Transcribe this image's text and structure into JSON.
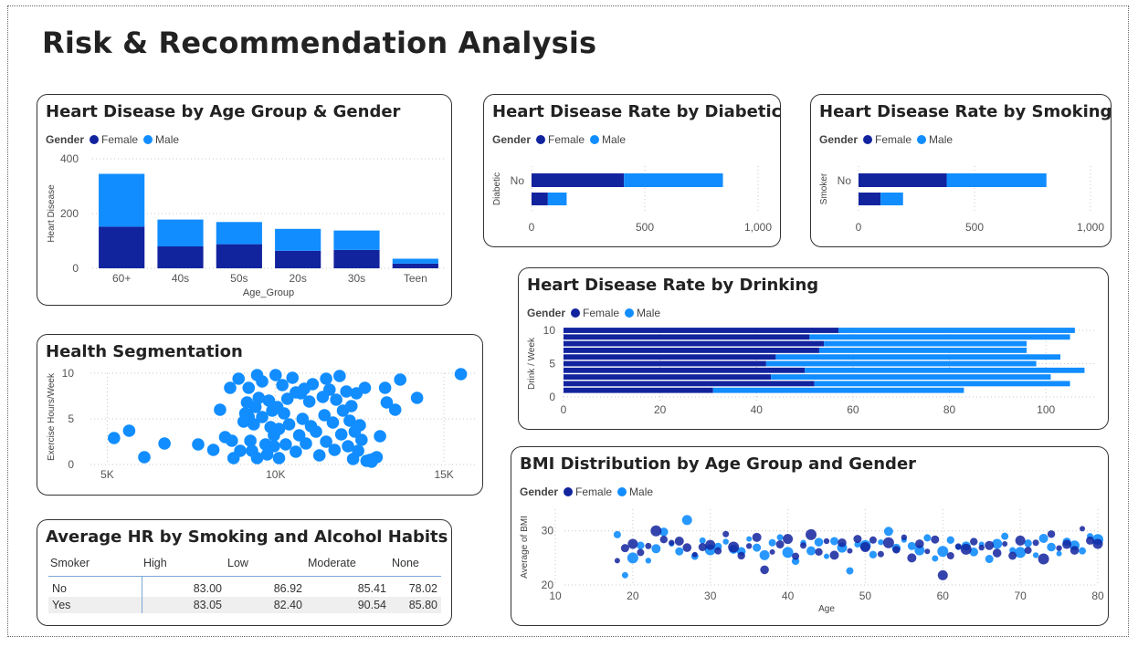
{
  "page": {
    "title": "Risk & Recommendation Analysis"
  },
  "colors": {
    "female": "#12239e",
    "male": "#118dff"
  },
  "legend": {
    "title": "Gender",
    "female": "Female",
    "male": "Male"
  },
  "age_gender": {
    "title": "Heart Disease by Age Group & Gender",
    "chart_data": {
      "type": "bar",
      "stacked": true,
      "categories": [
        "60+",
        "40s",
        "50s",
        "20s",
        "30s",
        "Teen"
      ],
      "series": [
        {
          "name": "Female",
          "values": [
            152,
            80,
            88,
            64,
            67,
            17
          ]
        },
        {
          "name": "Male",
          "values": [
            193,
            98,
            81,
            80,
            71,
            18
          ]
        }
      ],
      "xlabel": "Age_Group",
      "ylabel": "Heart Disease",
      "ylim": [
        0,
        400
      ],
      "yticks": [
        0,
        200,
        400
      ],
      "ytick_labels": [
        "0",
        "200",
        "400"
      ],
      "legend": "top-left",
      "grid": true
    }
  },
  "diabetic": {
    "title": "Heart Disease Rate by Diabetic",
    "chart_data": {
      "type": "bar",
      "orientation": "horizontal",
      "stacked": true,
      "categories": [
        "No",
        ""
      ],
      "series": [
        {
          "name": "Female",
          "values": [
            408,
            72
          ]
        },
        {
          "name": "Male",
          "values": [
            437,
            83
          ]
        }
      ],
      "ylabel": "Diabetic",
      "xlim": [
        0,
        1000
      ],
      "xticks": [
        0,
        500,
        1000
      ],
      "xtick_labels": [
        "0",
        "500",
        "1,000"
      ],
      "legend": "top-left",
      "grid": true
    }
  },
  "smoking": {
    "title": "Heart Disease Rate by Smoking",
    "chart_data": {
      "type": "bar",
      "orientation": "horizontal",
      "stacked": true,
      "categories": [
        "No",
        ""
      ],
      "series": [
        {
          "name": "Female",
          "values": [
            380,
            95
          ]
        },
        {
          "name": "Male",
          "values": [
            430,
            97
          ]
        }
      ],
      "ylabel": "Smoker",
      "xlim": [
        0,
        1000
      ],
      "xticks": [
        0,
        500,
        1000
      ],
      "xtick_labels": [
        "0",
        "500",
        "1,000"
      ],
      "legend": "top-left",
      "grid": true
    }
  },
  "drinking": {
    "title": "Heart Disease Rate by Drinking",
    "chart_data": {
      "type": "bar",
      "orientation": "horizontal",
      "stacked": true,
      "categories": [
        10,
        9,
        8,
        7,
        6,
        5,
        4,
        3,
        2,
        1,
        0
      ],
      "series": [
        {
          "name": "Female",
          "values": [
            57,
            51,
            54,
            53,
            44,
            42,
            50,
            43,
            52,
            31,
            0
          ]
        },
        {
          "name": "Male",
          "values": [
            49,
            54,
            42,
            43,
            59,
            56,
            58,
            58,
            53,
            52,
            0
          ]
        }
      ],
      "ylabel": "Drink / Week",
      "xlim": [
        0,
        110
      ],
      "xticks": [
        0,
        20,
        40,
        60,
        80,
        100
      ],
      "yticks": [
        0,
        5,
        10
      ],
      "legend": "top-left",
      "grid": true
    }
  },
  "segmentation": {
    "title": "Health Segmentation",
    "chart_data": {
      "type": "scatter",
      "ylabel": "Exercise Hours/Week",
      "xlim": [
        4500,
        16000
      ],
      "ylim": [
        0,
        10
      ],
      "xticks": [
        5000,
        10000,
        15000
      ],
      "xtick_labels": [
        "5K",
        "10K",
        "15K"
      ],
      "yticks": [
        0,
        5,
        10
      ],
      "grid": true,
      "points": [
        [
          5200,
          2.9
        ],
        [
          5650,
          3.7
        ],
        [
          6100,
          0.8
        ],
        [
          6700,
          2.3
        ],
        [
          7700,
          2.2
        ],
        [
          8150,
          1.6
        ],
        [
          8350,
          6.0
        ],
        [
          8500,
          3.0
        ],
        [
          8650,
          8.4
        ],
        [
          8700,
          2.6
        ],
        [
          8750,
          0.7
        ],
        [
          8900,
          9.4
        ],
        [
          8950,
          1.5
        ],
        [
          9050,
          4.7
        ],
        [
          9100,
          5.6
        ],
        [
          9150,
          6.8
        ],
        [
          9200,
          5.2
        ],
        [
          9200,
          8.4
        ],
        [
          9250,
          2.6
        ],
        [
          9300,
          1.5
        ],
        [
          9350,
          4.4
        ],
        [
          9400,
          6.3
        ],
        [
          9450,
          9.8
        ],
        [
          9450,
          0.7
        ],
        [
          9500,
          7.3
        ],
        [
          9600,
          5.2
        ],
        [
          9600,
          9.1
        ],
        [
          9700,
          2.2
        ],
        [
          9750,
          1.1
        ],
        [
          9800,
          7.0
        ],
        [
          9850,
          4.1
        ],
        [
          9900,
          5.9
        ],
        [
          9950,
          3.2
        ],
        [
          10000,
          9.8
        ],
        [
          10050,
          6.3
        ],
        [
          10100,
          3.9
        ],
        [
          10100,
          0.7
        ],
        [
          10200,
          8.7
        ],
        [
          10250,
          5.6
        ],
        [
          10300,
          2.2
        ],
        [
          10350,
          7.2
        ],
        [
          10400,
          4.4
        ],
        [
          10500,
          9.5
        ],
        [
          10600,
          1.4
        ],
        [
          10700,
          3.2
        ],
        [
          10750,
          7.8
        ],
        [
          10800,
          5.0
        ],
        [
          10850,
          8.3
        ],
        [
          10900,
          2.3
        ],
        [
          11000,
          6.9
        ],
        [
          11050,
          4.2
        ],
        [
          11100,
          8.8
        ],
        [
          11200,
          3.6
        ],
        [
          11300,
          1.0
        ],
        [
          11400,
          7.4
        ],
        [
          11450,
          5.4
        ],
        [
          11500,
          2.5
        ],
        [
          11600,
          8.2
        ],
        [
          11700,
          4.6
        ],
        [
          11750,
          1.6
        ],
        [
          11800,
          7.1
        ],
        [
          11900,
          9.7
        ],
        [
          11950,
          3.3
        ],
        [
          12000,
          5.9
        ],
        [
          12100,
          8.0
        ],
        [
          12150,
          2.0
        ],
        [
          12200,
          4.8
        ],
        [
          12250,
          6.4
        ],
        [
          12300,
          0.6
        ],
        [
          12350,
          3.6
        ],
        [
          12400,
          7.8
        ],
        [
          12450,
          1.5
        ],
        [
          12500,
          4.3
        ],
        [
          12550,
          2.7
        ],
        [
          12650,
          8.4
        ],
        [
          12700,
          0.4
        ],
        [
          12800,
          0.5
        ],
        [
          12900,
          0.6
        ],
        [
          13000,
          0.8
        ],
        [
          13100,
          3.1
        ],
        [
          13250,
          8.4
        ],
        [
          13300,
          6.8
        ],
        [
          13550,
          6.0
        ],
        [
          13700,
          9.3
        ],
        [
          14200,
          7.3
        ],
        [
          15500,
          9.9
        ],
        [
          11500,
          9.4
        ],
        [
          10600,
          7.9
        ],
        [
          9950,
          2.0
        ],
        [
          12850,
          0.3
        ]
      ]
    }
  },
  "avg_hr": {
    "title": "Average HR by Smoking and Alcohol Habits",
    "headers": {
      "c0": "Smoker",
      "c1": "High",
      "c2": "Low",
      "c3": "Moderate",
      "c4": "None"
    },
    "rows": [
      {
        "smoker": "No",
        "high": "83.00",
        "low": "86.92",
        "moderate": "85.41",
        "none": "78.02"
      },
      {
        "smoker": "Yes",
        "high": "83.05",
        "low": "82.40",
        "moderate": "90.54",
        "none": "85.80"
      }
    ]
  },
  "bmi": {
    "title": "BMI Distribution by Age Group and Gender",
    "chart_data": {
      "type": "scatter",
      "xlabel": "Age",
      "ylabel": "Average of BMI",
      "xlim": [
        10,
        80
      ],
      "ylim": [
        20,
        34
      ],
      "xticks": [
        10,
        20,
        30,
        40,
        50,
        60,
        70,
        80
      ],
      "yticks": [
        20,
        30
      ],
      "legend": "top-left",
      "grid": true,
      "series": [
        {
          "name": "Female",
          "points": [
            [
              18,
              24.5
            ],
            [
              19,
              26.8
            ],
            [
              20,
              27.6
            ],
            [
              21,
              26.0
            ],
            [
              22,
              27.2
            ],
            [
              23,
              30.0
            ],
            [
              24,
              28.4
            ],
            [
              25,
              27.8
            ],
            [
              26,
              28.1
            ],
            [
              27,
              26.9
            ],
            [
              28,
              25.6
            ],
            [
              29,
              27.0
            ],
            [
              30,
              27.4
            ],
            [
              31,
              26.3
            ],
            [
              32,
              29.4
            ],
            [
              33,
              27.0
            ],
            [
              34,
              25.4
            ],
            [
              35,
              27.2
            ],
            [
              36,
              28.8
            ],
            [
              37,
              22.8
            ],
            [
              38,
              26.1
            ],
            [
              39,
              27.5
            ],
            [
              40,
              28.5
            ],
            [
              41,
              25.3
            ],
            [
              42,
              27.3
            ],
            [
              43,
              29.3
            ],
            [
              44,
              26.1
            ],
            [
              45,
              28.1
            ],
            [
              46,
              25.5
            ],
            [
              47,
              27.8
            ],
            [
              48,
              26.3
            ],
            [
              49,
              28.5
            ],
            [
              50,
              27.0
            ],
            [
              51,
              28.3
            ],
            [
              52,
              25.7
            ],
            [
              53,
              27.8
            ],
            [
              54,
              26.5
            ],
            [
              55,
              28.8
            ],
            [
              56,
              25.0
            ],
            [
              57,
              27.6
            ],
            [
              58,
              26.2
            ],
            [
              59,
              28.4
            ],
            [
              60,
              21.8
            ],
            [
              61,
              25.4
            ],
            [
              62,
              27.1
            ],
            [
              63,
              26.6
            ],
            [
              64,
              28.0
            ],
            [
              65,
              26.9
            ],
            [
              66,
              27.3
            ],
            [
              67,
              25.9
            ],
            [
              68,
              27.6
            ],
            [
              69,
              25.4
            ],
            [
              70,
              28.2
            ],
            [
              71,
              26.4
            ],
            [
              72,
              27.8
            ],
            [
              73,
              24.8
            ],
            [
              74,
              29.4
            ],
            [
              75,
              26.8
            ],
            [
              76,
              27.5
            ],
            [
              77,
              26.4
            ],
            [
              78,
              30.4
            ],
            [
              79,
              28.2
            ],
            [
              80,
              27.6
            ]
          ]
        },
        {
          "name": "Male",
          "points": [
            [
              18,
              29.3
            ],
            [
              19,
              21.8
            ],
            [
              20,
              25.0
            ],
            [
              21,
              27.3
            ],
            [
              22,
              24.5
            ],
            [
              23,
              26.7
            ],
            [
              24,
              29.8
            ],
            [
              25,
              27.6
            ],
            [
              26,
              26.2
            ],
            [
              27,
              32.0
            ],
            [
              28,
              25.3
            ],
            [
              29,
              28.2
            ],
            [
              30,
              26.5
            ],
            [
              31,
              27.1
            ],
            [
              32,
              28.0
            ],
            [
              33,
              26.6
            ],
            [
              34,
              26.2
            ],
            [
              35,
              28.5
            ],
            [
              36,
              26.9
            ],
            [
              37,
              25.5
            ],
            [
              38,
              27.8
            ],
            [
              39,
              28.8
            ],
            [
              40,
              26.0
            ],
            [
              41,
              24.4
            ],
            [
              42,
              27.8
            ],
            [
              43,
              26.3
            ],
            [
              44,
              27.9
            ],
            [
              45,
              25.3
            ],
            [
              46,
              28.1
            ],
            [
              47,
              26.9
            ],
            [
              48,
              22.6
            ],
            [
              49,
              27.5
            ],
            [
              50,
              27.3
            ],
            [
              51,
              25.6
            ],
            [
              52,
              27.9
            ],
            [
              53,
              29.9
            ],
            [
              54,
              26.8
            ],
            [
              55,
              28.3
            ],
            [
              56,
              27.2
            ],
            [
              57,
              26.4
            ],
            [
              58,
              28.7
            ],
            [
              59,
              24.9
            ],
            [
              60,
              26.2
            ],
            [
              61,
              28.3
            ],
            [
              62,
              27.0
            ],
            [
              63,
              27.2
            ],
            [
              64,
              26.1
            ],
            [
              65,
              27.5
            ],
            [
              66,
              24.8
            ],
            [
              67,
              27.6
            ],
            [
              68,
              29.0
            ],
            [
              69,
              26.4
            ],
            [
              70,
              26.0
            ],
            [
              71,
              27.7
            ],
            [
              72,
              25.5
            ],
            [
              73,
              28.6
            ],
            [
              74,
              27.0
            ],
            [
              75,
              25.8
            ],
            [
              76,
              28.0
            ],
            [
              77,
              27.3
            ],
            [
              78,
              26.3
            ],
            [
              79,
              29.0
            ],
            [
              80,
              28.4
            ]
          ]
        }
      ]
    }
  }
}
